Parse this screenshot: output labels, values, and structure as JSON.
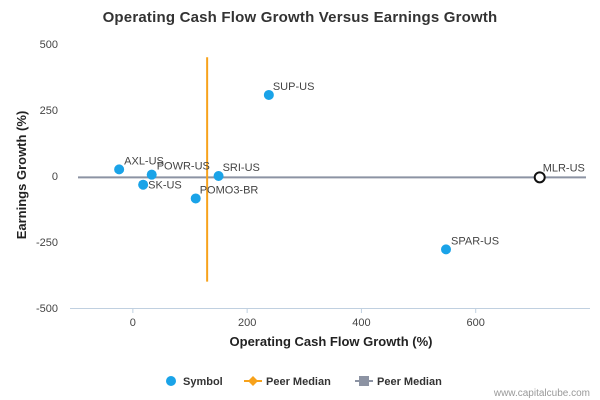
{
  "chart_data": {
    "type": "scatter",
    "title": "Operating Cash Flow Growth Versus Earnings Growth",
    "xlabel": "Operating Cash Flow Growth (%)",
    "ylabel": "Earnings Growth (%)",
    "xlim": [
      -110,
      800
    ],
    "ylim": [
      -500,
      500
    ],
    "x_ticks": [
      0,
      200,
      400,
      600
    ],
    "y_ticks": [
      500,
      250,
      0,
      -250,
      -500
    ],
    "grid": false,
    "series": [
      {
        "name": "Symbol",
        "color": "#1aa3e8",
        "points": [
          {
            "label": "SUP-US",
            "x": 238,
            "y": 307
          },
          {
            "label": "AXL-US",
            "x": -24,
            "y": 25
          },
          {
            "label": "POWR-US",
            "x": 33,
            "y": 5
          },
          {
            "label": "SRI-US",
            "x": 150,
            "y": 0
          },
          {
            "label": "SK-US",
            "x": 18,
            "y": -33
          },
          {
            "label": "POMO3-BR",
            "x": 110,
            "y": -85
          },
          {
            "label": "SPAR-US",
            "x": 548,
            "y": -278
          }
        ]
      }
    ],
    "highlight": {
      "label": "MLR-US",
      "x": 712,
      "y": -5
    },
    "peer_median_x": {
      "name": "Peer Median",
      "value": 130,
      "y_range": [
        450,
        -400
      ],
      "color": "#f7a21b"
    },
    "peer_median_y": {
      "name": "Peer Median",
      "value": -5,
      "color": "#8c93a3"
    },
    "legend": {
      "position": "bottom-center",
      "items": [
        {
          "label": "Symbol",
          "marker": "circle",
          "color": "#1aa3e8"
        },
        {
          "label": "Peer Median",
          "marker": "diamond-line",
          "color": "#f7a21b"
        },
        {
          "label": "Peer Median",
          "marker": "square-line",
          "color": "#8c93a3"
        }
      ]
    }
  },
  "credit": "www.capitalcube.com"
}
